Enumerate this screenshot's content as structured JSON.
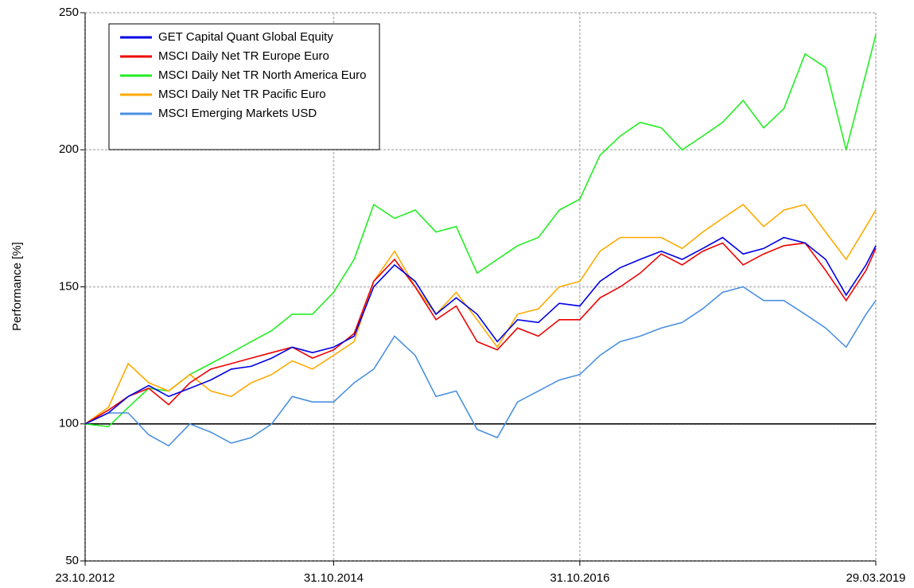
{
  "chart_data": {
    "type": "line",
    "ylabel": "Performance [%]",
    "x": [
      "23.10.2012",
      "31.12.2012",
      "28.02.2013",
      "30.04.2013",
      "28.06.2013",
      "30.08.2013",
      "31.10.2013",
      "31.12.2013",
      "28.02.2014",
      "30.04.2014",
      "30.06.2014",
      "29.08.2014",
      "31.10.2014",
      "31.12.2014",
      "27.02.2015",
      "30.04.2015",
      "30.06.2015",
      "31.08.2015",
      "30.10.2015",
      "31.12.2015",
      "29.02.2016",
      "29.04.2016",
      "30.06.2016",
      "31.08.2016",
      "31.10.2016",
      "30.12.2016",
      "28.02.2017",
      "28.04.2017",
      "30.06.2017",
      "31.08.2017",
      "31.10.2017",
      "29.12.2017",
      "28.02.2018",
      "30.04.2018",
      "29.06.2018",
      "31.08.2018",
      "31.10.2018",
      "31.12.2018",
      "28.02.2019",
      "29.03.2019"
    ],
    "series": [
      {
        "name": "GET Capital Quant Global Equity",
        "color": "#0000e6",
        "values": [
          100,
          104,
          110,
          114,
          110,
          113,
          116,
          120,
          121,
          124,
          128,
          126,
          128,
          132,
          150,
          158,
          152,
          140,
          146,
          140,
          130,
          138,
          137,
          144,
          143,
          152,
          157,
          160,
          163,
          160,
          164,
          168,
          162,
          164,
          168,
          166,
          160,
          147,
          158,
          165
        ]
      },
      {
        "name": "MSCI Daily Net TR Europe Euro",
        "color": "#ee0000",
        "values": [
          100,
          105,
          110,
          113,
          107,
          115,
          120,
          122,
          124,
          126,
          128,
          124,
          127,
          133,
          152,
          160,
          150,
          138,
          143,
          130,
          127,
          135,
          132,
          138,
          138,
          146,
          150,
          155,
          162,
          158,
          163,
          166,
          158,
          162,
          165,
          166,
          156,
          145,
          156,
          164
        ]
      },
      {
        "name": "MSCI Daily Net TR North America Euro",
        "color": "#22ee22",
        "values": [
          100,
          99,
          106,
          113,
          112,
          118,
          122,
          126,
          130,
          134,
          140,
          140,
          148,
          160,
          180,
          175,
          178,
          170,
          172,
          155,
          160,
          165,
          168,
          178,
          182,
          198,
          205,
          210,
          208,
          200,
          205,
          210,
          218,
          208,
          215,
          235,
          230,
          200,
          228,
          242
        ]
      },
      {
        "name": "MSCI Daily Net TR Pacific Euro",
        "color": "#ffaa00",
        "values": [
          100,
          106,
          122,
          115,
          112,
          118,
          112,
          110,
          115,
          118,
          123,
          120,
          125,
          130,
          152,
          163,
          150,
          140,
          148,
          138,
          128,
          140,
          142,
          150,
          152,
          163,
          168,
          168,
          168,
          164,
          170,
          175,
          180,
          172,
          178,
          180,
          170,
          160,
          172,
          178
        ]
      },
      {
        "name": "MSCI Emerging Markets USD",
        "color": "#4a90e2",
        "values": [
          100,
          104,
          104,
          96,
          92,
          100,
          97,
          93,
          95,
          100,
          110,
          108,
          108,
          115,
          120,
          132,
          125,
          110,
          112,
          98,
          95,
          108,
          112,
          116,
          118,
          125,
          130,
          132,
          135,
          137,
          142,
          148,
          150,
          145,
          145,
          140,
          135,
          128,
          140,
          145
        ]
      }
    ],
    "xlim": [
      "23.10.2012",
      "29.03.2019"
    ],
    "xticks": [
      "23.10.2012",
      "31.10.2014",
      "31.10.2016",
      "29.03.2019"
    ],
    "ylim": [
      50,
      250
    ],
    "yticks": [
      50,
      100,
      150,
      200,
      250
    ],
    "baseline": 100,
    "grid": true,
    "legend": "upper left"
  }
}
